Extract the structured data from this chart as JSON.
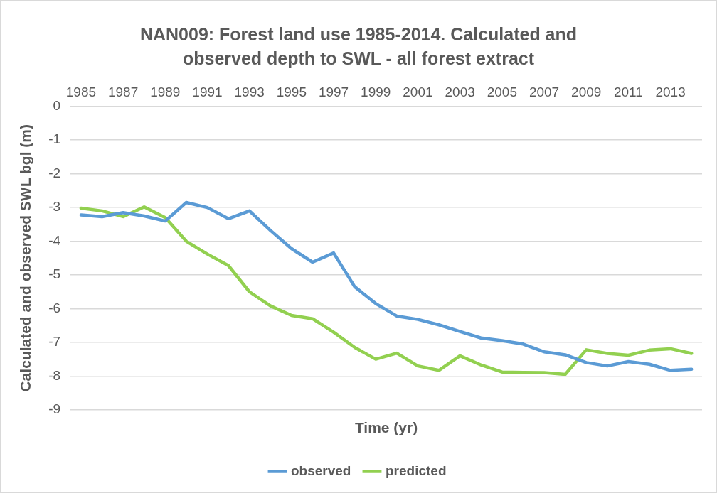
{
  "chart_data": {
    "type": "line",
    "title": "NAN009: Forest land use 1985-2014. Calculated and observed depth to SWL - all forest extract",
    "xlabel": "Time (yr)",
    "ylabel": "Calculated and observed SWL bgl (m)",
    "categories": [
      "1985",
      null,
      "1987",
      null,
      "1989",
      null,
      "1991",
      null,
      "1993",
      null,
      "1995",
      null,
      "1997",
      null,
      "1999",
      null,
      "2001",
      null,
      "2003",
      null,
      "2005",
      null,
      "2007",
      null,
      "2009",
      null,
      "2011",
      null,
      "2013",
      null
    ],
    "series": [
      {
        "name": "observed",
        "color": "#5b9bd5",
        "values": [
          -3.22,
          -3.27,
          -3.15,
          -3.25,
          -3.4,
          -2.85,
          -3.0,
          -3.33,
          -3.1,
          -3.68,
          -4.22,
          -4.62,
          -4.35,
          -5.35,
          -5.85,
          -6.22,
          -6.32,
          -6.48,
          -6.68,
          -6.87,
          -6.95,
          -7.05,
          -7.28,
          -7.37,
          -7.6,
          -7.7,
          -7.57,
          -7.65,
          -7.83,
          -7.8
        ]
      },
      {
        "name": "predicted",
        "color": "#92d050",
        "values": [
          -3.02,
          -3.1,
          -3.27,
          -2.98,
          -3.3,
          -4.0,
          -4.38,
          -4.72,
          -5.5,
          -5.92,
          -6.2,
          -6.3,
          -6.7,
          -7.15,
          -7.5,
          -7.32,
          -7.7,
          -7.83,
          -7.4,
          -7.67,
          -7.88,
          -7.89,
          -7.9,
          -7.95,
          -7.22,
          -7.33,
          -7.38,
          -7.23,
          -7.19,
          -7.33
        ]
      }
    ],
    "ylim": [
      -9,
      0
    ],
    "yticks": [
      -9,
      -8,
      -7,
      -6,
      -5,
      -4,
      -3,
      -2,
      -1,
      0
    ],
    "grid": "y",
    "legend": "bottom",
    "marker": "none",
    "line_style": "solid"
  }
}
